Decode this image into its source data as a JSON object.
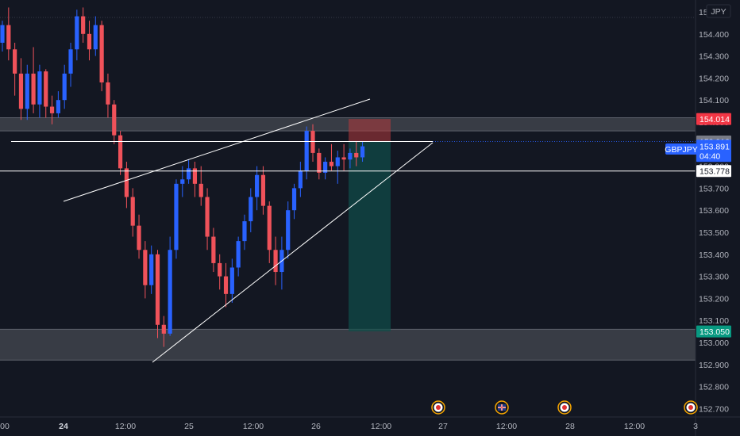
{
  "currency_label": "JPY",
  "symbol_label": "GBPJPY",
  "countdown": "04:40",
  "colors": {
    "background": "#131722",
    "up": "#2962ff",
    "down": "#f0525a",
    "zone": "#ffffff",
    "short_risk": "#b2383c",
    "short_reward": "#0f4f4a",
    "tp_tag": "#089981",
    "sl_tag": "#f23645"
  },
  "chart_data": {
    "type": "candlestick",
    "instrument": "GBPJPY",
    "y_ticks": [
      "152.700",
      "152.800",
      "152.900",
      "153.000",
      "153.100",
      "153.200",
      "153.300",
      "153.400",
      "153.500",
      "153.600",
      "153.700",
      "153.800",
      "153.900",
      "154.000",
      "154.100",
      "154.200",
      "154.300",
      "154.400",
      "154.500"
    ],
    "x_ticks": [
      {
        "label": "00",
        "bold": false
      },
      {
        "label": "24",
        "bold": true
      },
      {
        "label": "12:00",
        "bold": false
      },
      {
        "label": "25",
        "bold": false
      },
      {
        "label": "12:00",
        "bold": false
      },
      {
        "label": "26",
        "bold": false
      },
      {
        "label": "12:00",
        "bold": false
      },
      {
        "label": "27",
        "bold": false
      },
      {
        "label": "12:00",
        "bold": false
      },
      {
        "label": "28",
        "bold": false
      },
      {
        "label": "12:00",
        "bold": false
      },
      {
        "label": "3",
        "bold": false
      }
    ],
    "price_tags": [
      {
        "label": "154.014",
        "value": 154.014,
        "kind": "stop"
      },
      {
        "label": "153.912",
        "value": 153.912,
        "kind": "entry"
      },
      {
        "label": "153.891",
        "value": 153.891,
        "kind": "last"
      },
      {
        "label": "153.778",
        "value": 153.778,
        "kind": "level"
      },
      {
        "label": "153.050",
        "value": 153.05,
        "kind": "target"
      }
    ],
    "zones": [
      {
        "from": 153.96,
        "to": 154.02
      },
      {
        "from": 152.92,
        "to": 153.06
      }
    ],
    "horizontal_lines": [
      153.912,
      153.778
    ],
    "short_position": {
      "entry": 153.912,
      "stop": 154.014,
      "target": 153.05
    },
    "trend_lines": [
      {
        "from": [
          -9,
          153.74
        ],
        "to": [
          58,
          154.1
        ]
      },
      {
        "from": [
          24,
          152.92
        ],
        "to": [
          68,
          153.91
        ]
      },
      {
        "from": [
          2,
          153.912
        ],
        "to": [
          68,
          153.912
        ]
      }
    ],
    "candles": [
      [
        154.36,
        154.46,
        154.32,
        154.44
      ],
      [
        154.44,
        154.52,
        154.28,
        154.33
      ],
      [
        154.33,
        154.36,
        154.12,
        154.22
      ],
      [
        154.22,
        154.29,
        154.01,
        154.06
      ],
      [
        154.06,
        154.26,
        154.01,
        154.22
      ],
      [
        154.22,
        154.34,
        154.04,
        154.08
      ],
      [
        154.08,
        154.26,
        154.02,
        154.23
      ],
      [
        154.23,
        154.24,
        154.02,
        154.07
      ],
      [
        154.07,
        154.12,
        153.99,
        154.04
      ],
      [
        154.04,
        154.14,
        154.02,
        154.1
      ],
      [
        154.1,
        154.26,
        154.06,
        154.22
      ],
      [
        154.22,
        154.36,
        154.16,
        154.33
      ],
      [
        154.33,
        154.51,
        154.28,
        154.48
      ],
      [
        154.48,
        154.52,
        154.36,
        154.4
      ],
      [
        154.4,
        154.46,
        154.28,
        154.33
      ],
      [
        154.33,
        154.48,
        154.3,
        154.44
      ],
      [
        154.44,
        154.46,
        154.14,
        154.18
      ],
      [
        154.18,
        154.22,
        154.02,
        154.08
      ],
      [
        154.08,
        154.1,
        153.9,
        153.94
      ],
      [
        153.94,
        153.96,
        153.76,
        153.79
      ],
      [
        153.79,
        153.82,
        153.61,
        153.66
      ],
      [
        153.66,
        153.7,
        153.48,
        153.53
      ],
      [
        153.53,
        153.58,
        153.38,
        153.42
      ],
      [
        153.42,
        153.46,
        153.2,
        153.26
      ],
      [
        153.26,
        153.44,
        153.22,
        153.4
      ],
      [
        153.4,
        153.42,
        153.02,
        153.08
      ],
      [
        153.08,
        153.12,
        152.98,
        153.04
      ],
      [
        153.04,
        153.48,
        153.03,
        153.42
      ],
      [
        153.42,
        153.74,
        153.38,
        153.72
      ],
      [
        153.72,
        153.8,
        153.66,
        153.74
      ],
      [
        153.74,
        153.83,
        153.72,
        153.79
      ],
      [
        153.79,
        153.82,
        153.66,
        153.72
      ],
      [
        153.72,
        153.8,
        153.62,
        153.66
      ],
      [
        153.66,
        153.7,
        153.42,
        153.48
      ],
      [
        153.48,
        153.52,
        153.32,
        153.36
      ],
      [
        153.36,
        153.4,
        153.24,
        153.3
      ],
      [
        153.3,
        153.36,
        153.16,
        153.22
      ],
      [
        153.22,
        153.38,
        153.18,
        153.34
      ],
      [
        153.34,
        153.48,
        153.3,
        153.46
      ],
      [
        153.46,
        153.58,
        153.42,
        153.55
      ],
      [
        153.55,
        153.7,
        153.5,
        153.66
      ],
      [
        153.66,
        153.8,
        153.6,
        153.76
      ],
      [
        153.76,
        153.8,
        153.58,
        153.62
      ],
      [
        153.62,
        153.64,
        153.36,
        153.42
      ],
      [
        153.42,
        153.48,
        153.26,
        153.32
      ],
      [
        153.32,
        153.48,
        153.24,
        153.42
      ],
      [
        153.42,
        153.64,
        153.38,
        153.6
      ],
      [
        153.6,
        153.72,
        153.56,
        153.7
      ],
      [
        153.7,
        153.82,
        153.66,
        153.78
      ],
      [
        153.78,
        153.98,
        153.74,
        153.96
      ],
      [
        153.96,
        153.99,
        153.82,
        153.86
      ],
      [
        153.86,
        153.88,
        153.74,
        153.77
      ],
      [
        153.77,
        153.84,
        153.74,
        153.82
      ],
      [
        153.82,
        153.9,
        153.78,
        153.8
      ],
      [
        153.8,
        153.87,
        153.72,
        153.84
      ],
      [
        153.84,
        153.9,
        153.78,
        153.83
      ],
      [
        153.83,
        153.88,
        153.79,
        153.86
      ],
      [
        153.86,
        153.91,
        153.8,
        153.84
      ],
      [
        153.84,
        153.91,
        153.82,
        153.89
      ]
    ]
  }
}
